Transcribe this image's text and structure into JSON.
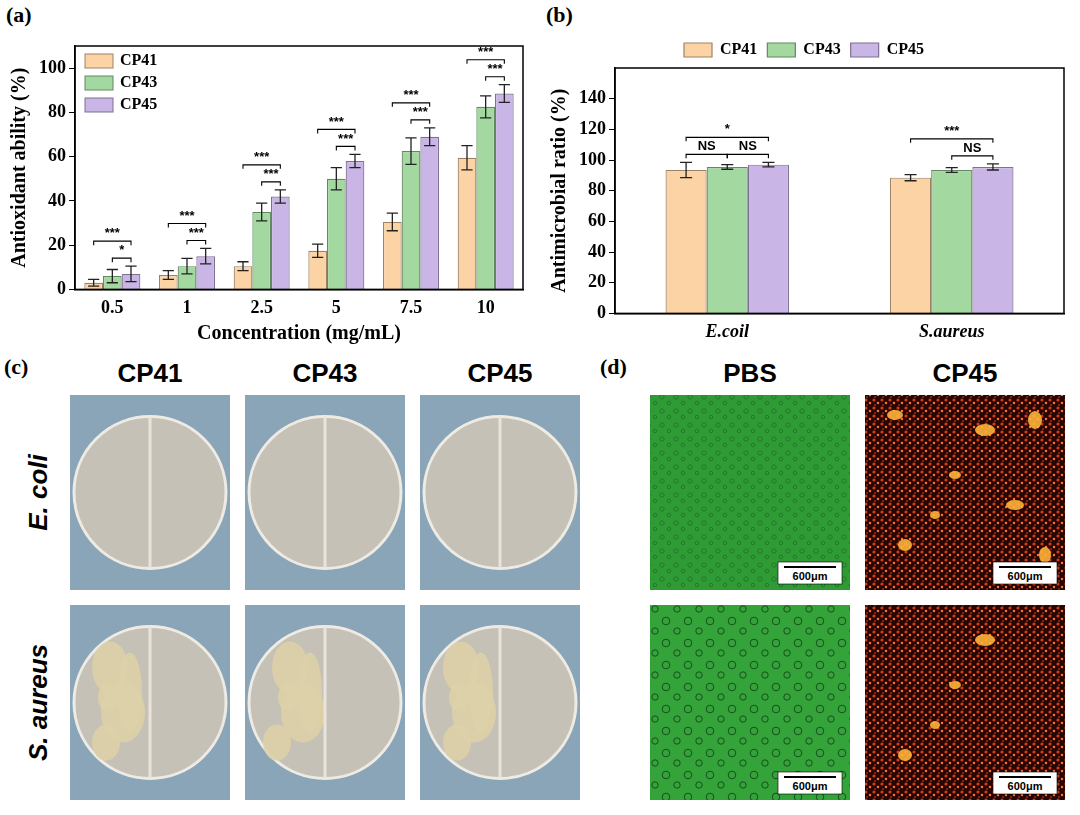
{
  "chart_data": [
    {
      "panel": "(a)",
      "type": "bar",
      "x_label": "Concentration (mg/mL)",
      "y_label": "Antioxidant ability (%)",
      "categories": [
        "0.5",
        "1",
        "2.5",
        "5",
        "7.5",
        "10"
      ],
      "series": [
        {
          "name": "CP41",
          "color": "#fcd3a4",
          "values": [
            3,
            6.5,
            10.5,
            17.5,
            30.5,
            59.5
          ],
          "errors": [
            1.5,
            2,
            2,
            3,
            4,
            5.5
          ]
        },
        {
          "name": "CP43",
          "color": "#a3d9a0",
          "values": [
            6,
            10.5,
            35,
            50,
            62.5,
            82.5
          ],
          "errors": [
            3,
            3.5,
            4,
            5,
            6,
            5
          ]
        },
        {
          "name": "CP45",
          "color": "#c9b6e6",
          "values": [
            7,
            15,
            42,
            58,
            69,
            88.5
          ],
          "errors": [
            3.5,
            3.5,
            3,
            3,
            4,
            4
          ]
        }
      ],
      "ylim": [
        0,
        110
      ],
      "yticks": [
        0,
        20,
        40,
        60,
        80,
        100
      ],
      "grid": false,
      "legend": "top-left",
      "significance": [
        {
          "category": "0.5",
          "from": "CP41",
          "to": "CP45",
          "label": "***"
        },
        {
          "category": "0.5",
          "from": "CP43",
          "to": "CP45",
          "label": "*"
        },
        {
          "category": "1",
          "from": "CP41",
          "to": "CP45",
          "label": "***"
        },
        {
          "category": "1",
          "from": "CP43",
          "to": "CP45",
          "label": "***"
        },
        {
          "category": "2.5",
          "from": "CP41",
          "to": "CP45",
          "label": "***"
        },
        {
          "category": "2.5",
          "from": "CP43",
          "to": "CP45",
          "label": "***"
        },
        {
          "category": "5",
          "from": "CP41",
          "to": "CP45",
          "label": "***"
        },
        {
          "category": "5",
          "from": "CP43",
          "to": "CP45",
          "label": "***"
        },
        {
          "category": "7.5",
          "from": "CP41",
          "to": "CP45",
          "label": "***"
        },
        {
          "category": "7.5",
          "from": "CP43",
          "to": "CP45",
          "label": "***"
        },
        {
          "category": "10",
          "from": "CP41",
          "to": "CP45",
          "label": "***"
        },
        {
          "category": "10",
          "from": "CP43",
          "to": "CP45",
          "label": "***"
        }
      ]
    },
    {
      "panel": "(b)",
      "type": "bar",
      "y_label": "Antimicrobial ratio (%)",
      "categories": [
        "E.coil",
        "S.aureus"
      ],
      "series": [
        {
          "name": "CP41",
          "color": "#fcd3a4",
          "values": [
            93.5,
            88.5
          ],
          "errors": [
            5,
            2
          ]
        },
        {
          "name": "CP43",
          "color": "#a3d9a0",
          "values": [
            95.5,
            93.5
          ],
          "errors": [
            1.5,
            1.5
          ]
        },
        {
          "name": "CP45",
          "color": "#c9b6e6",
          "values": [
            97,
            95.5
          ],
          "errors": [
            1.5,
            2
          ]
        }
      ],
      "ylim": [
        0,
        160
      ],
      "yticks": [
        0,
        20,
        40,
        60,
        80,
        100,
        120,
        140
      ],
      "grid": false,
      "legend": "top",
      "significance": [
        {
          "category": "E.coil",
          "from": "CP41",
          "to": "CP43",
          "label": "NS"
        },
        {
          "category": "E.coil",
          "from": "CP43",
          "to": "CP45",
          "label": "NS"
        },
        {
          "category": "E.coil",
          "from": "CP41",
          "to": "CP45",
          "label": "*"
        },
        {
          "category": "S.aureus",
          "from": "CP41",
          "to": "CP45",
          "label": "***"
        },
        {
          "category": "S.aureus",
          "from": "CP43",
          "to": "CP45",
          "label": "NS"
        }
      ]
    }
  ],
  "panel_c": {
    "panel": "(c)",
    "columns": [
      "CP41",
      "CP43",
      "CP45"
    ],
    "rows": [
      "E. coli",
      "S. aureus"
    ]
  },
  "panel_d": {
    "panel": "(d)",
    "columns": [
      "PBS",
      "CP45"
    ],
    "scale_bar": "600μm"
  }
}
